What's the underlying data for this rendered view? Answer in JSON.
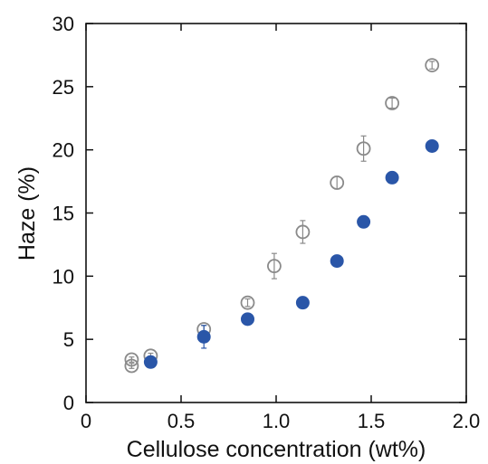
{
  "chart_data": {
    "type": "scatter",
    "xlabel": "Cellulose concentration (wt%)",
    "ylabel": "Haze (%)",
    "xlim": [
      0,
      2.0
    ],
    "ylim": [
      0,
      30
    ],
    "x_ticks": [
      0,
      0.5,
      1.0,
      1.5,
      2.0
    ],
    "x_tick_labels": [
      "0",
      "0.5",
      "1.0",
      "1.5",
      "2.0"
    ],
    "y_ticks": [
      0,
      5,
      10,
      15,
      20,
      25,
      30
    ],
    "y_tick_labels": [
      "0",
      "5",
      "10",
      "15",
      "20",
      "25",
      "30"
    ],
    "grid": false,
    "legend": "none",
    "series": [
      {
        "marker": "open-circle",
        "color": "#8a8a8a",
        "points": [
          {
            "x": 0.24,
            "y": 2.9,
            "err": 0.2
          },
          {
            "x": 0.24,
            "y": 3.4,
            "err": 0.2
          },
          {
            "x": 0.34,
            "y": 3.7,
            "err": 0.2
          },
          {
            "x": 0.62,
            "y": 5.8,
            "err": 0.3
          },
          {
            "x": 0.85,
            "y": 7.9,
            "err": 0.3
          },
          {
            "x": 0.99,
            "y": 10.8,
            "err": 1.0
          },
          {
            "x": 1.14,
            "y": 13.5,
            "err": 0.9
          },
          {
            "x": 1.32,
            "y": 17.4,
            "err": 0.5
          },
          {
            "x": 1.46,
            "y": 20.1,
            "err": 1.0
          },
          {
            "x": 1.61,
            "y": 23.7,
            "err": 0.4
          },
          {
            "x": 1.82,
            "y": 26.7,
            "err": 0.3
          }
        ]
      },
      {
        "marker": "filled-circle",
        "color": "#2a56a8",
        "points": [
          {
            "x": 0.34,
            "y": 3.2,
            "err": 0.2
          },
          {
            "x": 0.62,
            "y": 5.2,
            "err": 0.9
          },
          {
            "x": 0.85,
            "y": 6.6,
            "err": 0.2
          },
          {
            "x": 1.14,
            "y": 7.9,
            "err": 0.2
          },
          {
            "x": 1.32,
            "y": 11.2,
            "err": 0.2
          },
          {
            "x": 1.46,
            "y": 14.3,
            "err": 0.2
          },
          {
            "x": 1.61,
            "y": 17.8,
            "err": 0.2
          },
          {
            "x": 1.82,
            "y": 20.3,
            "err": 0.2
          }
        ]
      }
    ]
  }
}
